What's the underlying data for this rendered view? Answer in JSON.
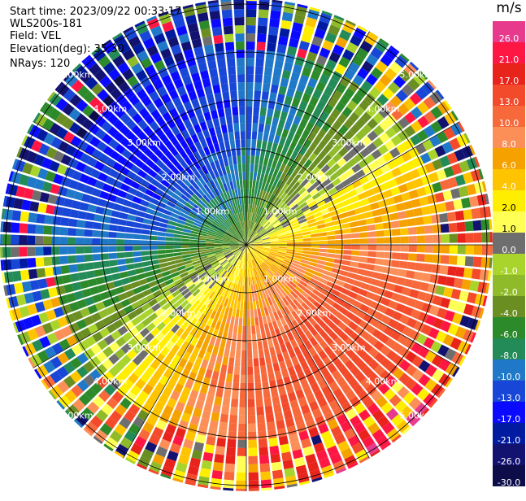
{
  "info": {
    "start_time": "Start time: 2023/09/22 00:33:17",
    "instrument": "WLS200s-181",
    "field": "Field: VEL",
    "elevation": "Elevation(deg): 35.30",
    "nrays": "NRays: 120"
  },
  "colorbar": {
    "unit": "m/s",
    "segments": [
      {
        "label": "26.0",
        "color": "#e83a8c",
        "text": "#ffffff"
      },
      {
        "label": "21.0",
        "color": "#ff1744",
        "text": "#ffffff"
      },
      {
        "label": "17.0",
        "color": "#e8231c",
        "text": "#ffffff"
      },
      {
        "label": "13.0",
        "color": "#f24a2a",
        "text": "#ffffff"
      },
      {
        "label": "10.0",
        "color": "#f7683a",
        "text": "#ffffff"
      },
      {
        "label": "8.0",
        "color": "#fb8f57",
        "text": "#ffffff"
      },
      {
        "label": "6.0",
        "color": "#f5a200",
        "text": "#ffffff"
      },
      {
        "label": "4.0",
        "color": "#ffc400",
        "text": "#ffffff"
      },
      {
        "label": "2.0",
        "color": "#ffee00",
        "text": "#000000"
      },
      {
        "label": "1.0",
        "color": "#ffff55",
        "text": "#000000"
      },
      {
        "label": "0.0",
        "color": "#6e6e6e",
        "text": "#ffffff"
      },
      {
        "label": "-1.0",
        "color": "#a9d42c",
        "text": "#ffffff"
      },
      {
        "label": "-2.0",
        "color": "#8fbb2a",
        "text": "#ffffff"
      },
      {
        "label": "-4.0",
        "color": "#6b8e23",
        "text": "#ffffff"
      },
      {
        "label": "-6.0",
        "color": "#2c8a2a",
        "text": "#ffffff"
      },
      {
        "label": "-8.0",
        "color": "#238b57",
        "text": "#ffffff"
      },
      {
        "label": "-10.0",
        "color": "#1f78c8",
        "text": "#ffffff"
      },
      {
        "label": "-13.0",
        "color": "#1846d6",
        "text": "#ffffff"
      },
      {
        "label": "-17.0",
        "color": "#0a0aff",
        "text": "#ffffff"
      },
      {
        "label": "-21.0",
        "color": "#001ba0",
        "text": "#ffffff"
      },
      {
        "label": "-26.0",
        "color": "#121270",
        "text": "#ffffff"
      },
      {
        "label": "-30.0",
        "color": "#0d0d4a",
        "text": "#ffffff"
      }
    ]
  },
  "range_labels": {
    "r1": "1.00km",
    "r2": "2.00km",
    "r3": "3.00km",
    "r4": "4.00km",
    "r5": "5.00km"
  }
}
